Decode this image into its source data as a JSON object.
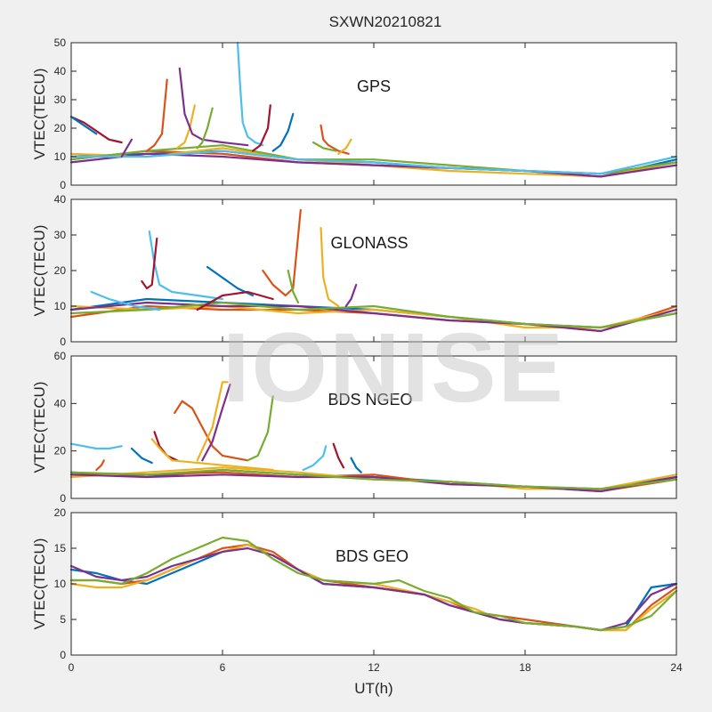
{
  "title": "SXWN20210821",
  "watermark": "IONISE",
  "colors": [
    "#0072BD",
    "#D95319",
    "#EDB120",
    "#7E2F8E",
    "#77AC30",
    "#4DBEEE",
    "#A2142F"
  ],
  "chart_data": [
    {
      "type": "line",
      "label": "GPS",
      "ylabel": "VTEC(TECU)",
      "ylim": [
        0,
        50
      ],
      "yticks": [
        0,
        10,
        20,
        30,
        40,
        50
      ],
      "xlim": [
        0,
        24
      ],
      "xticks": [
        0,
        6,
        12,
        18,
        24
      ],
      "series": [
        {
          "x": [
            0,
            3,
            6,
            9,
            12,
            15,
            18,
            21,
            24
          ],
          "y": [
            10,
            11,
            12,
            9,
            8,
            6,
            5,
            3,
            9
          ]
        },
        {
          "x": [
            0,
            3,
            6,
            9,
            12,
            15,
            18,
            21,
            24
          ],
          "y": [
            9,
            12,
            11,
            8,
            7,
            6,
            5,
            4,
            8
          ]
        },
        {
          "x": [
            0,
            3,
            6,
            9,
            12,
            15,
            18,
            21,
            24
          ],
          "y": [
            11,
            10,
            13,
            9,
            7,
            5,
            4,
            3,
            8
          ]
        },
        {
          "x": [
            0,
            3,
            6,
            9,
            12,
            15,
            18,
            21,
            24
          ],
          "y": [
            8,
            11,
            10,
            8,
            7,
            6,
            5,
            3,
            7
          ]
        },
        {
          "x": [
            0,
            3,
            6,
            9,
            12,
            15,
            18,
            21,
            24
          ],
          "y": [
            9,
            12,
            14,
            9,
            9,
            7,
            5,
            4,
            8
          ]
        },
        {
          "x": [
            0,
            3,
            6,
            9,
            12,
            15,
            18,
            21,
            24
          ],
          "y": [
            10,
            10,
            12,
            9,
            8,
            6,
            5,
            4,
            10
          ]
        },
        {
          "x": [
            0,
            0.5,
            1.0,
            1.5,
            2.0
          ],
          "y": [
            24,
            22,
            19,
            16,
            15
          ]
        },
        {
          "x": [
            0,
            0.5,
            1.0
          ],
          "y": [
            24,
            21,
            18
          ]
        },
        {
          "x": [
            3,
            3.3,
            3.6,
            3.8
          ],
          "y": [
            12,
            14,
            18,
            37
          ]
        },
        {
          "x": [
            4.2,
            4.5,
            4.7,
            4.9
          ],
          "y": [
            13,
            15,
            20,
            28
          ]
        },
        {
          "x": [
            4.3,
            4.5,
            4.8,
            5.2,
            6,
            7
          ],
          "y": [
            41,
            25,
            18,
            16,
            15,
            14
          ]
        },
        {
          "x": [
            5.0,
            5.2,
            5.4,
            5.6
          ],
          "y": [
            13,
            15,
            20,
            27
          ]
        },
        {
          "x": [
            6.6,
            6.7,
            6.8,
            7.0,
            7.3,
            7.6
          ],
          "y": [
            50,
            35,
            22,
            17,
            15,
            14
          ]
        },
        {
          "x": [
            7.2,
            7.5,
            7.8,
            7.9
          ],
          "y": [
            12,
            14,
            20,
            28
          ]
        },
        {
          "x": [
            8,
            8.3,
            8.6,
            8.8
          ],
          "y": [
            12,
            14,
            19,
            25
          ]
        },
        {
          "x": [
            9.9,
            10.0,
            10.2,
            10.6,
            11
          ],
          "y": [
            21,
            16,
            14,
            12,
            11
          ]
        },
        {
          "x": [
            10.6,
            10.9,
            11.1
          ],
          "y": [
            11,
            13,
            16
          ]
        },
        {
          "x": [
            2.0,
            2.2,
            2.4
          ],
          "y": [
            10,
            13,
            16
          ]
        },
        {
          "x": [
            9.6,
            10.0,
            10.5
          ],
          "y": [
            15,
            13,
            12
          ]
        }
      ]
    },
    {
      "type": "line",
      "label": "GLONASS",
      "ylabel": "VTEC(TECU)",
      "ylim": [
        0,
        40
      ],
      "yticks": [
        0,
        10,
        20,
        30,
        40
      ],
      "xlim": [
        0,
        24
      ],
      "xticks": [
        0,
        6,
        12,
        18,
        24
      ],
      "series": [
        {
          "x": [
            0,
            3,
            6,
            9,
            12,
            15,
            18,
            21,
            24
          ],
          "y": [
            9,
            12,
            11,
            10,
            9,
            7,
            5,
            4,
            8
          ]
        },
        {
          "x": [
            0,
            3,
            6,
            9,
            12,
            15,
            18,
            21,
            24
          ],
          "y": [
            7,
            10,
            9,
            9,
            8,
            6,
            5,
            3,
            10
          ]
        },
        {
          "x": [
            0,
            3,
            6,
            9,
            12,
            15,
            18,
            21,
            24
          ],
          "y": [
            10,
            9,
            10,
            8,
            9,
            7,
            4,
            4,
            9
          ]
        },
        {
          "x": [
            0,
            3,
            6,
            9,
            12,
            15,
            18,
            21,
            24
          ],
          "y": [
            9,
            11,
            10,
            10,
            8,
            6,
            5,
            3,
            9
          ]
        },
        {
          "x": [
            0,
            3,
            6,
            9,
            12,
            15,
            18,
            21,
            24
          ],
          "y": [
            8,
            9,
            11,
            9,
            10,
            7,
            5,
            4,
            8
          ]
        },
        {
          "x": [
            3.1,
            3.3,
            3.5,
            4.0,
            5.0,
            6.0
          ],
          "y": [
            31,
            22,
            16,
            14,
            13,
            12
          ]
        },
        {
          "x": [
            2.8,
            3.0,
            3.2,
            3.4
          ],
          "y": [
            17,
            15,
            16,
            29
          ]
        },
        {
          "x": [
            5.4,
            6.0,
            6.6,
            7.2
          ],
          "y": [
            21,
            18,
            15,
            13
          ]
        },
        {
          "x": [
            7.6,
            8.0,
            8.5,
            8.8,
            9.1
          ],
          "y": [
            20,
            16,
            13,
            15,
            37
          ]
        },
        {
          "x": [
            9.9,
            10.0,
            10.2,
            10.6
          ],
          "y": [
            32,
            18,
            12,
            10
          ]
        },
        {
          "x": [
            10.9,
            11.1,
            11.3
          ],
          "y": [
            10,
            12,
            16
          ]
        },
        {
          "x": [
            8.6,
            8.8,
            9.0
          ],
          "y": [
            20,
            14,
            11
          ]
        },
        {
          "x": [
            0.8,
            1.5,
            2.5,
            3.5
          ],
          "y": [
            14,
            12,
            10,
            9
          ]
        },
        {
          "x": [
            5,
            6,
            7,
            8
          ],
          "y": [
            9,
            13,
            14,
            12
          ]
        }
      ]
    },
    {
      "type": "line",
      "label": "BDS NGEO",
      "ylabel": "VTEC(TECU)",
      "ylim": [
        0,
        60
      ],
      "yticks": [
        0,
        20,
        40,
        60
      ],
      "xlim": [
        0,
        24
      ],
      "xticks": [
        0,
        6,
        12,
        18,
        24
      ],
      "series": [
        {
          "x": [
            0,
            3,
            6,
            9,
            12,
            15,
            18,
            21,
            24
          ],
          "y": [
            11,
            9,
            12,
            10,
            9,
            7,
            5,
            4,
            9
          ]
        },
        {
          "x": [
            0,
            3,
            6,
            9,
            12,
            15,
            18,
            21,
            24
          ],
          "y": [
            10,
            10,
            11,
            9,
            10,
            6,
            5,
            3,
            8
          ]
        },
        {
          "x": [
            0,
            3,
            6,
            9,
            12,
            15,
            18,
            21,
            24
          ],
          "y": [
            9,
            11,
            13,
            11,
            8,
            7,
            4,
            4,
            10
          ]
        },
        {
          "x": [
            0,
            3,
            6,
            9,
            12,
            15,
            18,
            21,
            24
          ],
          "y": [
            10,
            9,
            10,
            9,
            9,
            6,
            5,
            3,
            9
          ]
        },
        {
          "x": [
            0,
            3,
            6,
            9,
            12,
            15,
            18,
            21,
            24
          ],
          "y": [
            11,
            10,
            12,
            10,
            8,
            7,
            5,
            4,
            8
          ]
        },
        {
          "x": [
            0,
            0.5,
            1.0,
            1.5,
            2.0
          ],
          "y": [
            23,
            22,
            21,
            21,
            22
          ]
        },
        {
          "x": [
            3.3,
            3.5,
            3.8,
            4.2
          ],
          "y": [
            28,
            22,
            18,
            16
          ]
        },
        {
          "x": [
            2.4,
            2.8,
            3.2
          ],
          "y": [
            21,
            17,
            15
          ]
        },
        {
          "x": [
            4.1,
            4.4,
            4.8,
            5.2,
            5.6,
            6.0,
            7.0
          ],
          "y": [
            36,
            41,
            38,
            30,
            22,
            18,
            16
          ]
        },
        {
          "x": [
            5.0,
            5.6,
            6.0,
            6.2
          ],
          "y": [
            16,
            30,
            49,
            49
          ]
        },
        {
          "x": [
            5.2,
            5.6,
            6.0,
            6.3
          ],
          "y": [
            16,
            24,
            38,
            48
          ]
        },
        {
          "x": [
            7.0,
            7.4,
            7.8,
            8.0
          ],
          "y": [
            16,
            18,
            28,
            43
          ]
        },
        {
          "x": [
            9.2,
            9.6,
            10.0,
            10.1
          ],
          "y": [
            12,
            14,
            18,
            22
          ]
        },
        {
          "x": [
            10.4,
            10.6,
            10.8
          ],
          "y": [
            23,
            17,
            13
          ]
        },
        {
          "x": [
            11.1,
            11.3,
            11.5
          ],
          "y": [
            17,
            13,
            11
          ]
        },
        {
          "x": [
            1.0,
            1.2,
            1.3
          ],
          "y": [
            12,
            14,
            16
          ]
        },
        {
          "x": [
            3.2,
            3.6,
            4.0,
            6.0,
            8.0
          ],
          "y": [
            25,
            20,
            16,
            14,
            12
          ]
        }
      ]
    },
    {
      "type": "line",
      "label": "BDS GEO",
      "ylabel": "VTEC(TECU)",
      "ylim": [
        0,
        20
      ],
      "yticks": [
        0,
        5,
        10,
        15,
        20
      ],
      "xlim": [
        0,
        24
      ],
      "xticks": [
        0,
        6,
        12,
        18,
        24
      ],
      "xlabel": "UT(h)",
      "series": [
        {
          "x": [
            0,
            1,
            2,
            3,
            4,
            5,
            6,
            7,
            8,
            9,
            10,
            12,
            14,
            15,
            16,
            17,
            18,
            20,
            21,
            22,
            23,
            24
          ],
          "y": [
            12,
            11.5,
            10.5,
            10,
            11.5,
            13,
            14.5,
            15.5,
            14,
            12,
            10,
            9.5,
            8.5,
            7,
            6,
            5,
            4.5,
            4,
            3.5,
            4,
            9.5,
            10
          ]
        },
        {
          "x": [
            0,
            1,
            2,
            3,
            4,
            5,
            6,
            7,
            8,
            9,
            10,
            12,
            14,
            15,
            16,
            17,
            18,
            20,
            21,
            22,
            23,
            24
          ],
          "y": [
            10.5,
            10.5,
            10,
            10.5,
            12,
            13.5,
            15,
            15.5,
            14.5,
            12,
            10.5,
            9.5,
            8.5,
            7.5,
            6,
            5.5,
            5,
            4,
            3.5,
            3.5,
            7,
            9.5
          ]
        },
        {
          "x": [
            0,
            1,
            2,
            3,
            4,
            5,
            6,
            7,
            8,
            9,
            10,
            12,
            14,
            15,
            16,
            17,
            18,
            20,
            21,
            22,
            23,
            24
          ],
          "y": [
            10,
            9.5,
            9.5,
            10.5,
            12,
            13.5,
            14.5,
            15.5,
            14,
            12,
            10.5,
            10,
            8.5,
            7.5,
            6.5,
            5,
            4.5,
            4,
            3.5,
            3.5,
            6.5,
            9
          ]
        },
        {
          "x": [
            0,
            1,
            2,
            3,
            4,
            5,
            6,
            7,
            8,
            9,
            10,
            12,
            14,
            15,
            16,
            17,
            18,
            20,
            21,
            22,
            23,
            24
          ],
          "y": [
            12.5,
            11,
            10.5,
            11,
            12.5,
            13.5,
            14.5,
            15,
            14,
            12,
            10,
            9.5,
            8.5,
            7,
            6,
            5,
            4.5,
            4,
            3.5,
            4.5,
            8.5,
            10
          ]
        },
        {
          "x": [
            0,
            1,
            2,
            3,
            4,
            5,
            6,
            7,
            8,
            9,
            10,
            12,
            13,
            14,
            15,
            16,
            17,
            18,
            20,
            21,
            22,
            23,
            24
          ],
          "y": [
            10.5,
            10.5,
            10,
            11.5,
            13.5,
            15,
            16.5,
            16,
            13.5,
            11.5,
            10.5,
            10,
            10.5,
            9,
            8,
            6,
            5.5,
            4.5,
            4,
            3.5,
            4,
            5.5,
            9
          ]
        }
      ]
    }
  ]
}
